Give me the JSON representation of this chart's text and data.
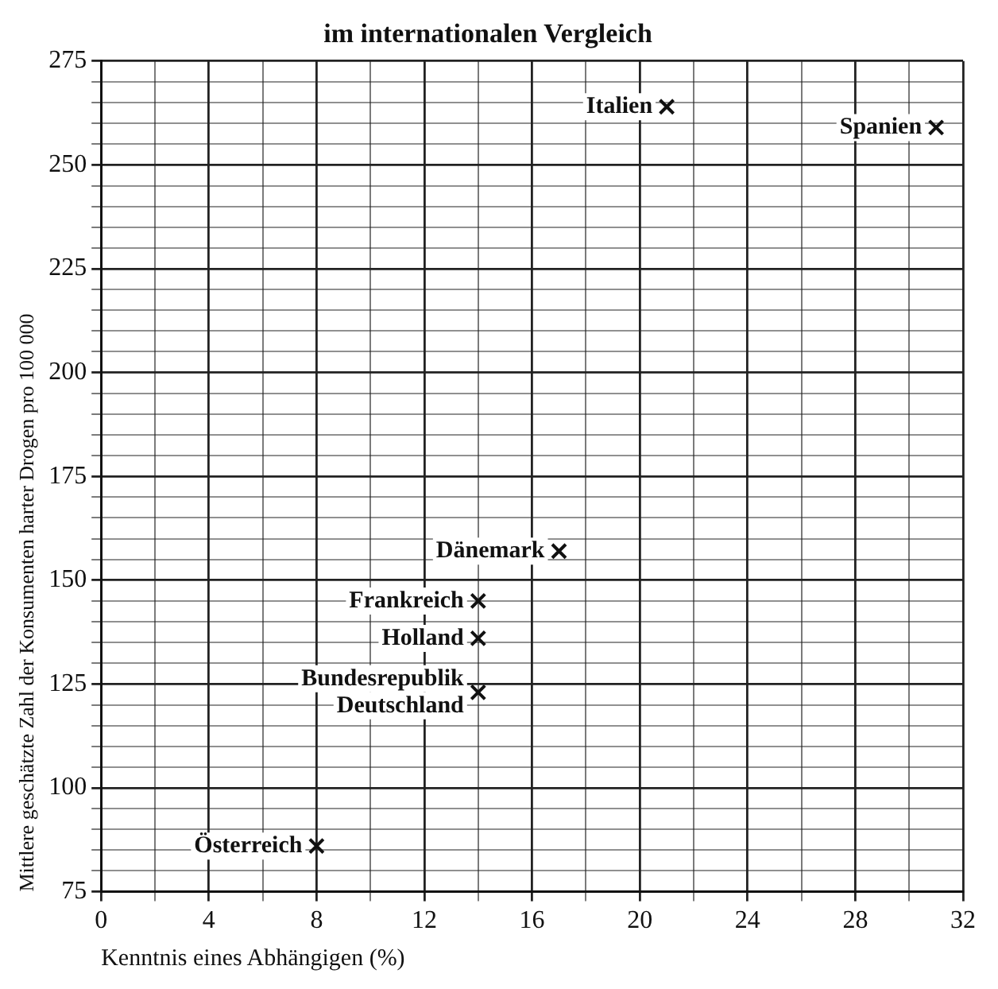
{
  "chart_data": {
    "type": "scatter",
    "title": "im internationalen Vergleich",
    "xlabel": "Kenntnis eines Abhängigen (%)",
    "ylabel": "Mittlere geschätzte Zahl der Konsumenten harter Drogen pro 100 000",
    "x": [
      21,
      31,
      17,
      14,
      14,
      14,
      8
    ],
    "values": [
      264,
      259,
      157,
      145,
      136,
      123,
      86
    ],
    "color": "#111111",
    "marker": "cross",
    "grid": true,
    "xlim": [
      0,
      32
    ],
    "xticks": [
      0,
      {
        "value": 2,
        "label": null
      },
      4,
      {
        "value": 6,
        "label": null
      },
      8,
      {
        "value": 10,
        "label": null
      },
      12,
      {
        "value": 14,
        "label": null
      },
      16,
      {
        "value": 18,
        "label": null
      },
      20,
      {
        "value": 22,
        "label": null
      },
      24,
      {
        "value": 26,
        "label": null
      },
      28,
      {
        "value": 30,
        "label": null
      },
      32
    ],
    "ylim": [
      75,
      275
    ],
    "yticks": [
      75,
      {
        "value": 80,
        "label": null
      },
      {
        "value": 85,
        "label": null
      },
      {
        "value": 90,
        "label": null
      },
      {
        "value": 95,
        "label": null
      },
      100,
      {
        "value": 105,
        "label": null
      },
      {
        "value": 110,
        "label": null
      },
      {
        "value": 115,
        "label": null
      },
      {
        "value": 120,
        "label": null
      },
      125,
      {
        "value": 130,
        "label": null
      },
      {
        "value": 135,
        "label": null
      },
      {
        "value": 140,
        "label": null
      },
      {
        "value": 145,
        "label": null
      },
      150,
      {
        "value": 155,
        "label": null
      },
      {
        "value": 160,
        "label": null
      },
      {
        "value": 165,
        "label": null
      },
      {
        "value": 170,
        "label": null
      },
      175,
      {
        "value": 180,
        "label": null
      },
      {
        "value": 185,
        "label": null
      },
      {
        "value": 190,
        "label": null
      },
      {
        "value": 195,
        "label": null
      },
      200,
      {
        "value": 205,
        "label": null
      },
      {
        "value": 210,
        "label": null
      },
      {
        "value": 215,
        "label": null
      },
      {
        "value": 220,
        "label": null
      },
      225,
      {
        "value": 230,
        "label": null
      },
      {
        "value": 235,
        "label": null
      },
      {
        "value": 240,
        "label": null
      },
      {
        "value": 245,
        "label": null
      },
      250,
      {
        "value": 255,
        "label": null
      },
      {
        "value": 260,
        "label": null
      },
      {
        "value": 265,
        "label": null
      },
      {
        "value": 270,
        "label": null
      },
      275
    ],
    "annotations": [
      {
        "text": "Italien",
        "x": 21,
        "y": 264
      },
      {
        "text": "Spanien",
        "x": 31,
        "y": 259
      },
      {
        "text": "Dänemark",
        "x": 17,
        "y": 157
      },
      {
        "text": "Frankreich",
        "x": 14,
        "y": 145
      },
      {
        "text": "Holland",
        "x": 14,
        "y": 136
      },
      {
        "text": "Bundesrepublik Deutschland",
        "x": 14,
        "y": 123
      },
      {
        "text": "Österreich",
        "x": 8,
        "y": 86
      }
    ]
  }
}
